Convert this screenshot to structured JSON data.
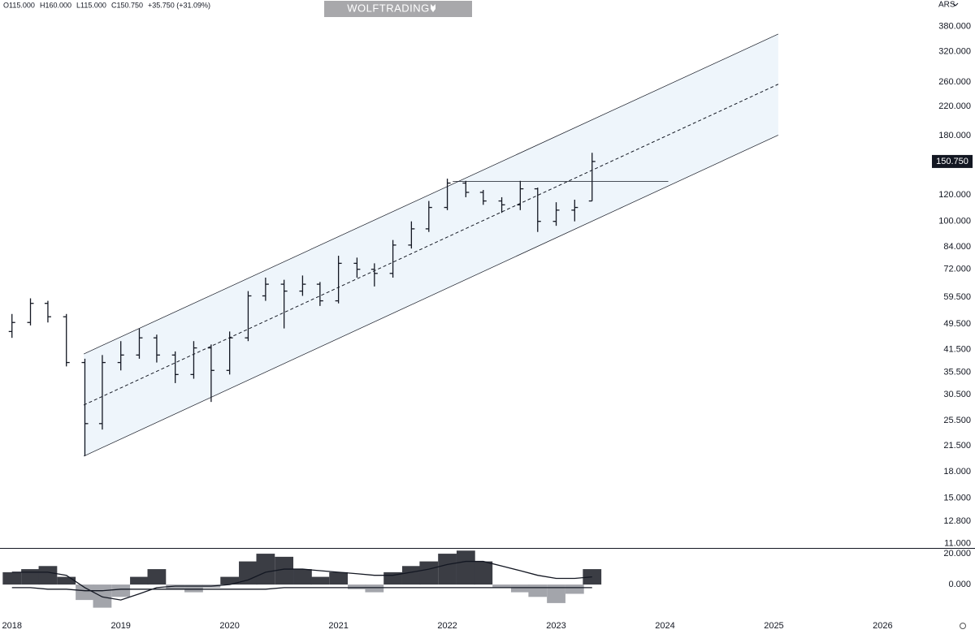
{
  "chart_data": {
    "type": "ohlc",
    "header": [
      "O115.000",
      "H160.000",
      "L115.000",
      "C150.750",
      "+35.750 (+31.09%)"
    ],
    "watermark": "WOLFTRADING",
    "currency": "ARS",
    "log_scale": true,
    "color": "#131722",
    "x": [
      2018.0,
      2018.17,
      2018.33,
      2018.5,
      2018.67,
      2018.83,
      2019.0,
      2019.17,
      2019.33,
      2019.5,
      2019.67,
      2019.83,
      2020.0,
      2020.17,
      2020.33,
      2020.5,
      2020.67,
      2020.83,
      2021.0,
      2021.17,
      2021.33,
      2021.5,
      2021.67,
      2021.83,
      2022.0,
      2022.17,
      2022.33,
      2022.5,
      2022.67,
      2022.83,
      2023.0,
      2023.17,
      2023.33
    ],
    "open": [
      47,
      50,
      57,
      52,
      38,
      25,
      38,
      40,
      45,
      40,
      35,
      42,
      36,
      45,
      60,
      65,
      62,
      65,
      58,
      75,
      72,
      70,
      85,
      95,
      110,
      130,
      122,
      115,
      112,
      125,
      100,
      108,
      115
    ],
    "high": [
      53,
      59,
      58,
      53,
      39,
      40,
      44,
      48,
      46,
      41,
      44,
      43,
      47,
      62,
      68,
      67,
      69,
      66,
      79,
      78,
      75,
      88,
      100,
      115,
      134,
      132,
      124,
      118,
      132,
      126,
      114,
      116,
      160
    ],
    "low": [
      45,
      49,
      50,
      37,
      20,
      24,
      36,
      39,
      38,
      33,
      34,
      29,
      35,
      44,
      58,
      48,
      60,
      56,
      57,
      68,
      64,
      68,
      83,
      93,
      108,
      118,
      112,
      106,
      108,
      93,
      97,
      100,
      115
    ],
    "close": [
      50,
      57,
      52,
      38,
      25,
      38,
      40,
      45,
      40,
      35,
      42,
      36,
      45,
      60,
      65,
      62,
      65,
      58,
      75,
      72,
      70,
      85,
      95,
      110,
      130,
      122,
      115,
      112,
      125,
      100,
      108,
      110,
      150.75
    ],
    "last_price": {
      "value": 150.75,
      "label": "150.750"
    },
    "xlim": [
      2017.89,
      2026.4
    ],
    "xticks": [
      2018,
      2019,
      2020,
      2021,
      2022,
      2023,
      2024,
      2025,
      2026
    ],
    "ylim": [
      10.66,
      456
    ],
    "yticks": [
      {
        "value": 380,
        "label": "380.000"
      },
      {
        "value": 320,
        "label": "320.000"
      },
      {
        "value": 260,
        "label": "260.000"
      },
      {
        "value": 220,
        "label": "220.000"
      },
      {
        "value": 180,
        "label": "180.000"
      },
      {
        "value": 120,
        "label": "120.000"
      },
      {
        "value": 100,
        "label": "100.000"
      },
      {
        "value": 84,
        "label": "84.000"
      },
      {
        "value": 72,
        "label": "72.000"
      },
      {
        "value": 59.5,
        "label": "59.500"
      },
      {
        "value": 49.5,
        "label": "49.500"
      },
      {
        "value": 41.5,
        "label": "41.500"
      },
      {
        "value": 35.5,
        "label": "35.500"
      },
      {
        "value": 30.5,
        "label": "30.500"
      },
      {
        "value": 25.5,
        "label": "25.500"
      },
      {
        "value": 21.5,
        "label": "21.500"
      },
      {
        "value": 18,
        "label": "18.000"
      },
      {
        "value": 15,
        "label": "15.000"
      },
      {
        "value": 12.8,
        "label": "12.800"
      },
      {
        "value": 11,
        "label": "11.000"
      }
    ],
    "channel_fill": "#eef5fb",
    "trendlines": [
      {
        "x": [
          2018.66,
          2025.04
        ],
        "y": [
          40.3,
          361
        ],
        "dashed": false
      },
      {
        "x": [
          2018.66,
          2025.04
        ],
        "y": [
          28.4,
          256
        ],
        "dashed": true
      },
      {
        "x": [
          2018.66,
          2025.04
        ],
        "y": [
          20.0,
          180.6
        ],
        "dashed": false
      },
      {
        "x": [
          2022.05,
          2024.03
        ],
        "y": [
          131.5,
          131.5
        ],
        "dashed": false
      }
    ],
    "indicator": {
      "ylim": [
        -21,
        23.2
      ],
      "yticks": [
        {
          "value": 20,
          "label": "20.000"
        },
        {
          "value": 0,
          "label": "0.000"
        }
      ],
      "histogram": {
        "positive_color": "#3b3d44",
        "negative_color": "#a3a5ab",
        "values": [
          8,
          10,
          12,
          5,
          -10,
          -15,
          -8,
          5,
          10,
          -3,
          -5,
          -2,
          5,
          15,
          20,
          18,
          10,
          5,
          8,
          -3,
          -5,
          8,
          12,
          15,
          20,
          22,
          15,
          -2,
          -5,
          -8,
          -12,
          -6,
          10
        ]
      },
      "series": [
        {
          "color": "#131722",
          "values": [
            8,
            8,
            8,
            6,
            -2,
            -8,
            -10,
            -6,
            -2,
            -1,
            -1,
            -1,
            0,
            3,
            8,
            10,
            10,
            9,
            8,
            7,
            6,
            6,
            8,
            10,
            13,
            15,
            15,
            12,
            9,
            6,
            4,
            4,
            5
          ]
        },
        {
          "color": "#131722",
          "values": [
            -2,
            -2,
            -3,
            -3,
            -4,
            -4,
            -3,
            -3,
            -3,
            -3,
            -3,
            -3,
            -3,
            -3,
            -3,
            -2,
            -2,
            -2,
            -2,
            -2,
            -2,
            -2,
            -2,
            -2,
            -2,
            -2,
            -2,
            -2,
            -2,
            -2,
            -2,
            -2,
            -2
          ]
        }
      ]
    }
  }
}
